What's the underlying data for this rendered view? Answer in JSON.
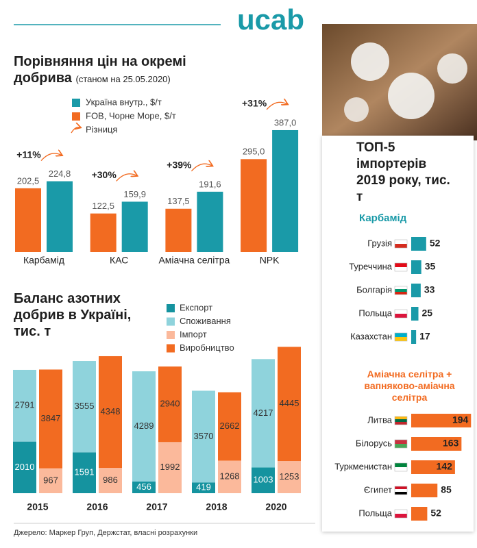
{
  "logo": "ucab",
  "top5_title": "ТОП-5 імпортерів 2019 року, тис. т",
  "source": "Джерело: Маркер Груп, Держстат, власні розрахунки",
  "chart_data": [
    {
      "type": "bar",
      "title": "Порівняння цін на окремі добрива",
      "subtitle": "(станом на 25.05.2020)",
      "categories": [
        "Карбамід",
        "КАС",
        "Аміачна селітра",
        "NPK"
      ],
      "series": [
        {
          "name": "Україна внутр., $/т",
          "color": "#1a9aa8",
          "values": [
            224.8,
            159.9,
            191.6,
            387.0
          ],
          "value_labels": [
            "224,8",
            "159,9",
            "191,6",
            "387,0"
          ]
        },
        {
          "name": "FOB, Чорне Море, $/т",
          "color": "#f26b21",
          "values": [
            202.5,
            122.5,
            137.5,
            295.0
          ],
          "value_labels": [
            "202,5",
            "122,5",
            "137,5",
            "295,0"
          ]
        },
        {
          "name": "Різниця",
          "color": "#f26b21",
          "values": [
            11,
            30,
            39,
            31
          ],
          "value_labels": [
            "+11%",
            "+30%",
            "+39%",
            "+31%"
          ]
        }
      ]
    },
    {
      "type": "stacked_bar",
      "title": "Баланс азотних добрив в Україні, тис. т",
      "categories": [
        "2015",
        "2016",
        "2017",
        "2018",
        "2020"
      ],
      "series": [
        {
          "name": "Експорт",
          "color": "#15939f",
          "values": [
            2010,
            1591,
            456,
            419,
            1003
          ]
        },
        {
          "name": "Споживання",
          "color": "#8fd3dc",
          "values": [
            2791,
            3555,
            4289,
            3570,
            4217
          ]
        },
        {
          "name": "Імпорт",
          "color": "#fbb99b",
          "values": [
            967,
            986,
            1992,
            1268,
            1253
          ]
        },
        {
          "name": "Виробництво",
          "color": "#f26b21",
          "values": [
            3847,
            4348,
            2940,
            2662,
            4445
          ]
        }
      ]
    },
    {
      "type": "hbar",
      "title": "Карбамід",
      "color": "#1a9aa8",
      "categories": [
        "Грузія",
        "Туреччина",
        "Болгарія",
        "Польща",
        "Казахстан"
      ],
      "values": [
        52,
        35,
        33,
        25,
        17
      ]
    },
    {
      "type": "hbar",
      "title": "Аміачна селітра + вапняково-аміачна селітра",
      "color": "#f26b21",
      "categories": [
        "Литва",
        "Білорусь",
        "Туркменистан",
        "Єгипет",
        "Польща"
      ],
      "values": [
        194,
        163,
        142,
        85,
        52
      ]
    }
  ]
}
